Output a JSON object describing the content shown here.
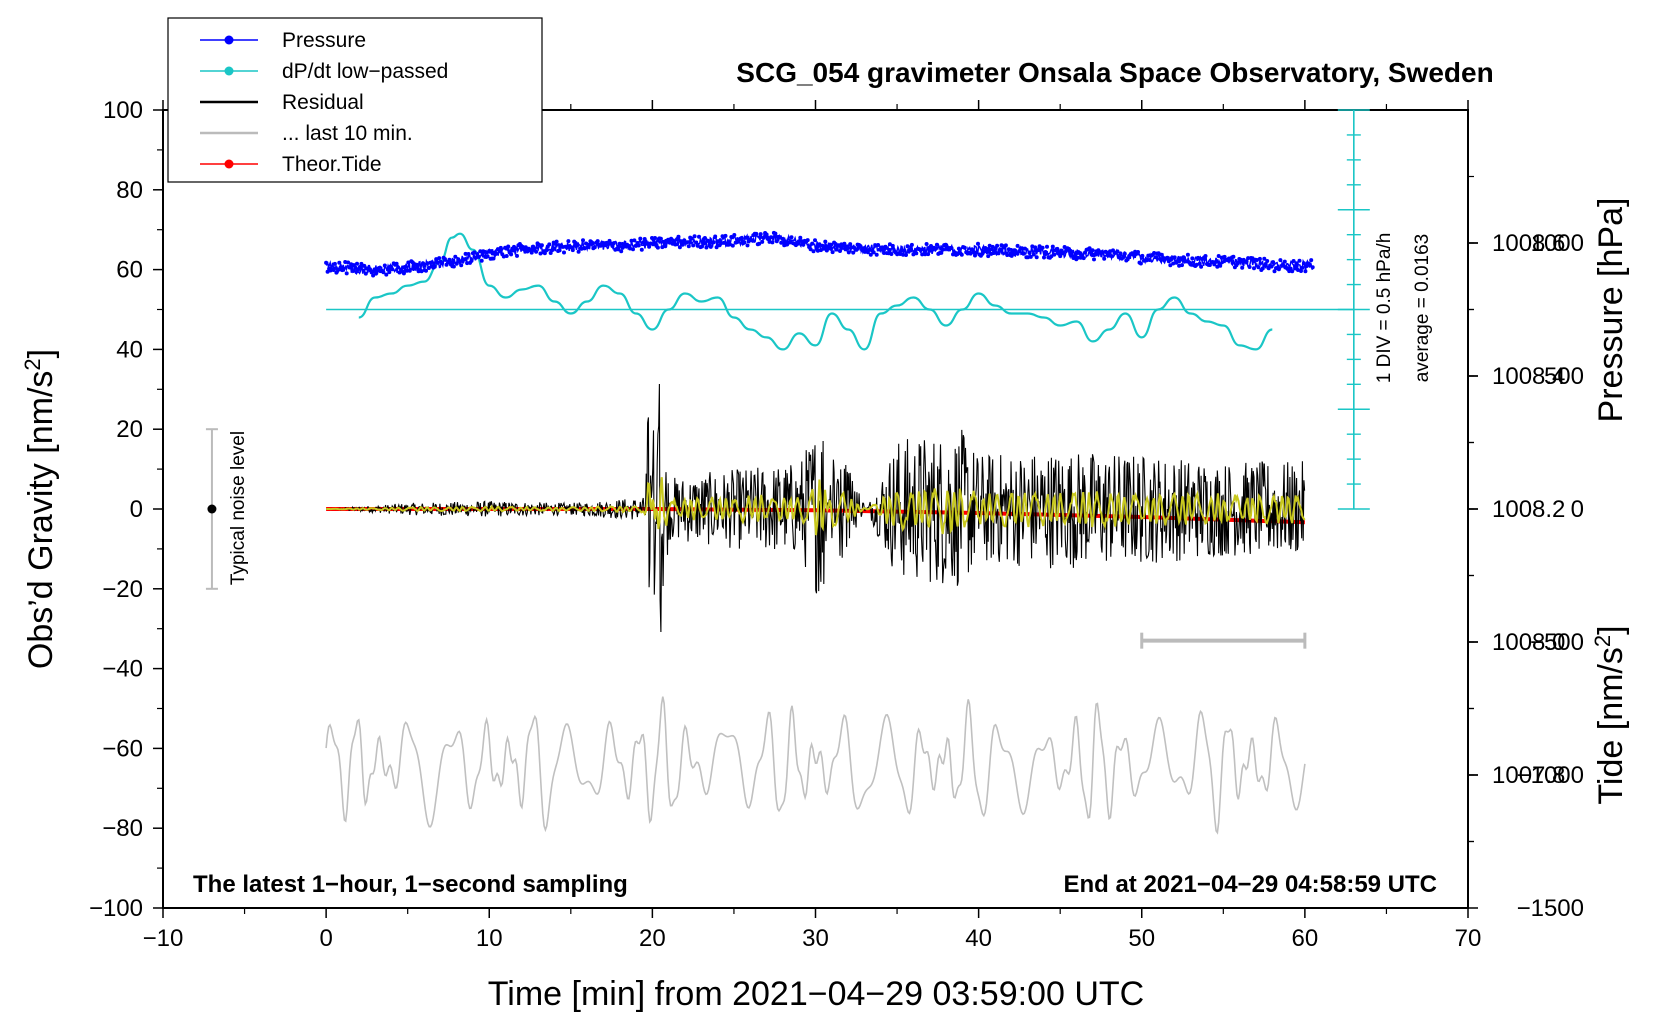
{
  "chart_data": {
    "type": "line",
    "title": "SCG_054 gravimeter Onsala Space Observatory, Sweden",
    "xlabel": "Time [min] from 2021−04−29 03:59:00 UTC",
    "ylabel_left_main": "Obs’d Gravity [nm/s",
    "ylabel_left_sup": "2",
    "ylabel_left_end": "]",
    "ylabel_right_pressure": "Pressure [hPa]",
    "ylabel_right_tide_main": "Tide [nm/s",
    "ylabel_right_tide_sup": "2",
    "ylabel_right_tide_end": "]",
    "xlim": [
      -10,
      70
    ],
    "ylim_left": [
      -100,
      100
    ],
    "pressure_ylim": [
      1007.6,
      1008.8
    ],
    "tide_ylim": [
      -1500,
      1500
    ],
    "x_tick_labels": [
      "−10",
      "0",
      "10",
      "20",
      "30",
      "40",
      "50",
      "60",
      "70"
    ],
    "x_tick_values": [
      -10,
      0,
      10,
      20,
      30,
      40,
      50,
      60,
      70
    ],
    "y_left_tick_labels": [
      "−100",
      "−80",
      "−60",
      "−40",
      "−20",
      "0",
      "20",
      "40",
      "60",
      "80",
      "100"
    ],
    "y_left_tick_values": [
      -100,
      -80,
      -60,
      -40,
      -20,
      0,
      20,
      40,
      60,
      80,
      100
    ],
    "pressure_tick_labels": [
      "1007.8",
      "1008.0",
      "1008.2",
      "1008.4",
      "1008.6"
    ],
    "pressure_tick_values": [
      1007.8,
      1008.0,
      1008.2,
      1008.4,
      1008.6
    ],
    "tide_tick_labels": [
      "−1500",
      "−1000",
      "−500",
      "0",
      "500",
      "1000"
    ],
    "tide_tick_values": [
      -1500,
      -1000,
      -500,
      0,
      500,
      1000
    ],
    "legend": [
      {
        "label": "Pressure",
        "color": "#0000ff",
        "marker": true
      },
      {
        "label": "dP/dt low−passed",
        "color": "#1ac6c6",
        "marker": true
      },
      {
        "label": "Residual",
        "color": "#000000",
        "marker": false
      },
      {
        "label": "... last 10 min.",
        "color": "#bbbbbb",
        "marker": false
      },
      {
        "label": "Theor.Tide",
        "color": "#ff0000",
        "marker": true
      }
    ],
    "annotations": {
      "bottom_left": "The latest 1−hour, 1−second sampling",
      "bottom_right": "End at 2021−04−29 04:58:59 UTC",
      "noise_label": "Typical noise level",
      "dpdt_scale": "1 DIV = 0.5 hPa/h",
      "dpdt_average": "average = 0.0163"
    },
    "noise_bar": {
      "x": -7,
      "y": 0,
      "half_range": 20
    },
    "last10_bar": {
      "x_start": 50,
      "x_end": 60,
      "y": -33
    },
    "dpdt_scale_axis": {
      "x": 63,
      "y_bottom": 0,
      "y_top": 100,
      "zero_level": 50,
      "ticks": 16
    },
    "colors": {
      "pressure": "#0000ff",
      "dpdt": "#1ac6c6",
      "residual": "#000000",
      "residual_filtered": "#c8c81e",
      "last10": "#bbbbbb",
      "tide": "#ff0000",
      "grey_wave": "#c0c0c0"
    },
    "series": [
      {
        "name": "Pressure",
        "unit": "nm/s2 (plotted on left scale)",
        "x": [
          0,
          2,
          4,
          6,
          8,
          10,
          12,
          14,
          16,
          18,
          20,
          22,
          24,
          26,
          27,
          28,
          30,
          32,
          34,
          36,
          38,
          40,
          42,
          44,
          46,
          48,
          50,
          52,
          54,
          56,
          58,
          60
        ],
        "y": [
          61,
          60,
          60,
          61,
          62,
          64,
          65,
          65.5,
          66,
          66,
          66.5,
          67,
          67,
          67.5,
          68,
          67.5,
          66,
          65.5,
          65,
          65,
          65,
          65,
          64.5,
          64.5,
          64,
          64,
          63,
          62.5,
          62,
          62,
          61,
          61
        ]
      },
      {
        "name": "dP/dt low-passed",
        "unit": "nm/s2 (plotted on left scale)",
        "x": [
          2,
          3,
          4,
          5,
          6,
          7,
          7.7,
          8.2,
          9,
          10,
          11,
          12,
          13,
          14,
          15,
          16,
          17,
          18,
          19,
          20,
          21,
          22,
          23,
          24,
          25,
          26,
          27,
          28,
          29,
          30,
          31,
          32,
          33,
          34,
          35,
          36,
          37,
          38,
          39,
          40,
          41,
          42,
          43,
          44,
          45,
          46,
          47,
          48,
          49,
          50,
          51,
          52,
          53,
          54,
          55,
          56,
          57,
          58
        ],
        "y": [
          48,
          53,
          54,
          56,
          57,
          62,
          68,
          69,
          65,
          56,
          53,
          55,
          56,
          52,
          49,
          52,
          56,
          54,
          49,
          45,
          50,
          54,
          52,
          53,
          48,
          45,
          43,
          40,
          44,
          41,
          49,
          45,
          40,
          49,
          51,
          53,
          50,
          46,
          50,
          54,
          51,
          49,
          49,
          48,
          46,
          47,
          42,
          45,
          49,
          43,
          50,
          53,
          49,
          47,
          46,
          41,
          40,
          45
        ]
      },
      {
        "name": "Residual",
        "unit": "nm/s2",
        "x": [
          0,
          5,
          10,
          15,
          19.5,
          19.8,
          20.1,
          20.4,
          21,
          25,
          29,
          30.5,
          31,
          35,
          39,
          40,
          45,
          50,
          55,
          60
        ],
        "y": [
          0,
          1.5,
          2,
          1.5,
          3,
          30,
          -28,
          37,
          8,
          10,
          12,
          25,
          -20,
          18,
          20,
          14,
          15,
          14,
          12,
          12
        ]
      },
      {
        "name": "Theor.Tide",
        "unit": "nm/s2",
        "x": [
          0,
          20,
          30,
          40,
          50,
          60
        ],
        "y": [
          0,
          0,
          -5,
          -15,
          -30,
          -50
        ]
      }
    ]
  }
}
